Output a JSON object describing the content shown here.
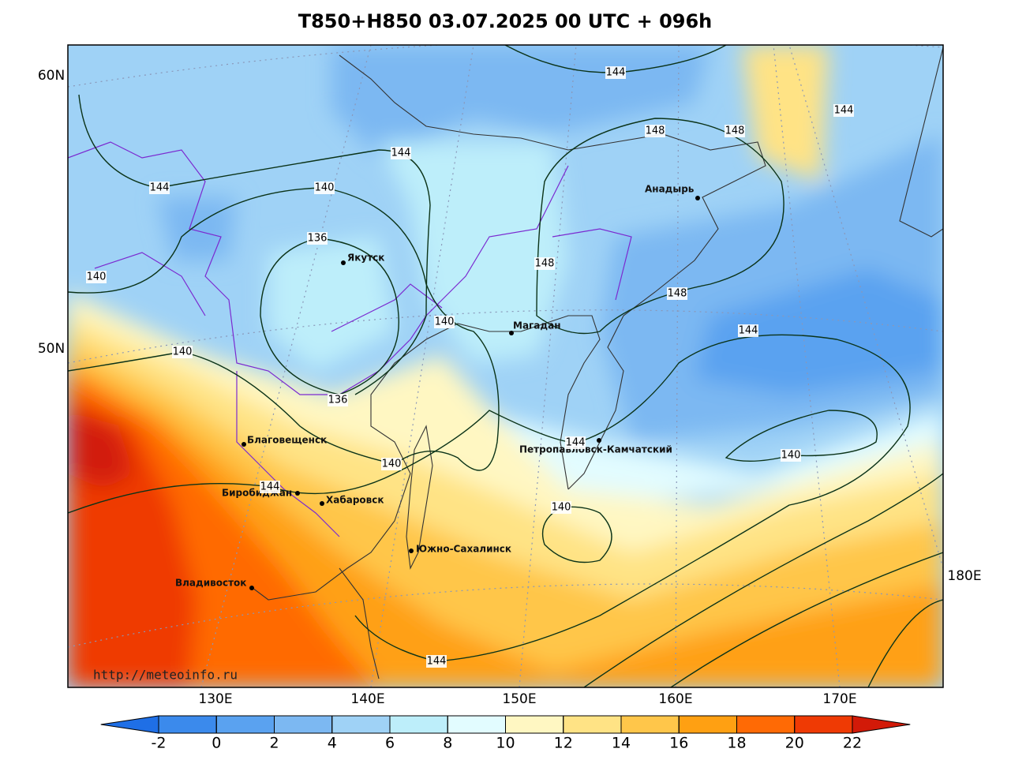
{
  "title": "T850+H850 03.07.2025 00 UTC + 096h",
  "lat_labels": [
    "60N",
    "50N"
  ],
  "lon_labels": [
    "130E",
    "140E",
    "150E",
    "160E",
    "170E",
    "180E"
  ],
  "cities": [
    "Якутск",
    "Магадан",
    "Анадырь",
    "Благовещенск",
    "Биробиджан",
    "Хабаровск",
    "Южно-Сахалинск",
    "Владивосток",
    "Петропавловск-Камчатский"
  ],
  "contour_labels": [
    144,
    144,
    148,
    148,
    144,
    144,
    140,
    136,
    148,
    140,
    148,
    140,
    144,
    140,
    136,
    144,
    140,
    140,
    144,
    140,
    144
  ],
  "colorbar": {
    "ticks": [
      -2,
      0,
      2,
      4,
      6,
      8,
      10,
      12,
      14,
      16,
      18,
      20,
      22
    ],
    "colors": [
      "#1f6fe6",
      "#3b8aec",
      "#5aa2f0",
      "#7cb8f2",
      "#9fd2f6",
      "#bdeefa",
      "#e2fcff",
      "#fff7c2",
      "#ffe385",
      "#ffc64a",
      "#ffa012",
      "#ff6a05",
      "#ef3a04",
      "#d21a08"
    ]
  },
  "credit": "http://meteoinfo.ru"
}
